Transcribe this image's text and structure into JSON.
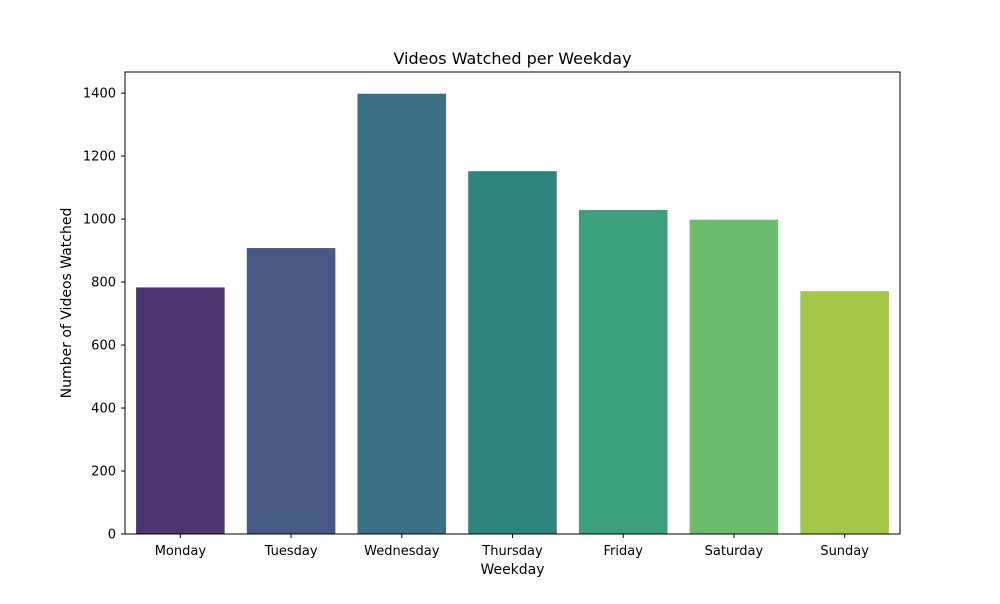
{
  "chart_data": {
    "type": "bar",
    "title": "Videos Watched per Weekday",
    "xlabel": "Weekday",
    "ylabel": "Number of Videos Watched",
    "categories": [
      "Monday",
      "Tuesday",
      "Wednesday",
      "Thursday",
      "Friday",
      "Saturday",
      "Sunday"
    ],
    "values": [
      783,
      908,
      1398,
      1152,
      1029,
      998,
      771
    ],
    "colors": [
      "#4a3771",
      "#465a86",
      "#3a7082",
      "#2e847e",
      "#3ba17c",
      "#6bbd6b",
      "#a3c746"
    ],
    "ylim": [
      0,
      1467
    ],
    "yticks": [
      0,
      200,
      400,
      600,
      800,
      1000,
      1200,
      1400
    ],
    "grid": false,
    "legend": "none"
  }
}
